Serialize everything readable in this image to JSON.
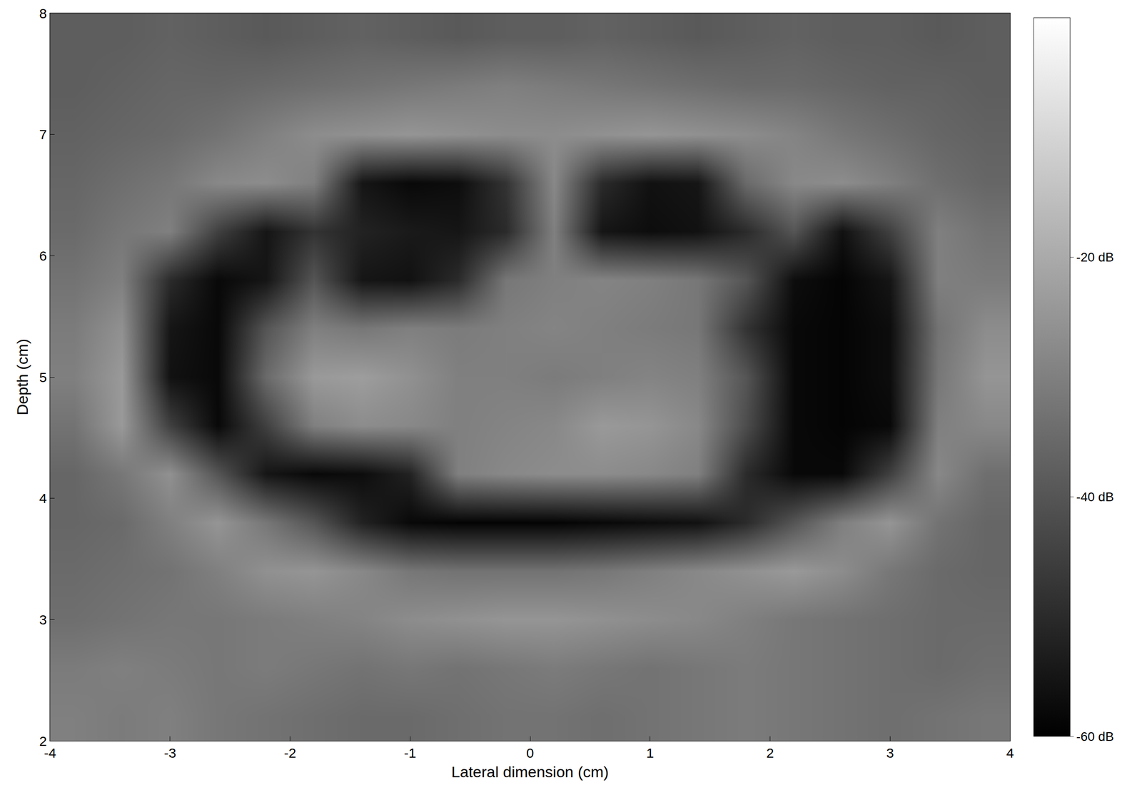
{
  "chart_data": {
    "type": "heatmap",
    "x_label": "Lateral dimension (cm)",
    "y_label": "Depth (cm)",
    "x": [
      -3.8,
      -3.4,
      -3.0,
      -2.6,
      -2.2,
      -1.8,
      -1.4,
      -1.0,
      -0.6,
      -0.2,
      0.2,
      0.6,
      1.0,
      1.4,
      1.8,
      2.2,
      2.6,
      3.0,
      3.4,
      3.8
    ],
    "y": [
      2.2,
      2.6,
      3.0,
      3.4,
      3.8,
      4.2,
      4.6,
      5.0,
      5.4,
      5.8,
      6.2,
      6.6,
      7.0,
      7.4,
      7.8
    ],
    "z": [
      [
        -30,
        -31,
        -30,
        -32,
        -33,
        -34,
        -35,
        -35,
        -34,
        -33,
        -33,
        -34,
        -33,
        -32,
        -31,
        -32,
        -33,
        -34,
        -33,
        -32
      ],
      [
        -31,
        -30,
        -31,
        -32,
        -31,
        -32,
        -33,
        -32,
        -33,
        -32,
        -31,
        -32,
        -33,
        -32,
        -31,
        -32,
        -33,
        -34,
        -35,
        -34
      ],
      [
        -34,
        -33,
        -32,
        -32,
        -31,
        -30,
        -29,
        -27,
        -26,
        -25,
        -25,
        -26,
        -27,
        -28,
        -30,
        -32,
        -33,
        -34,
        -35,
        -35
      ],
      [
        -35,
        -34,
        -33,
        -30,
        -26,
        -25,
        -28,
        -32,
        -33,
        -33,
        -33,
        -32,
        -30,
        -28,
        -26,
        -24,
        -27,
        -32,
        -35,
        -36
      ],
      [
        -36,
        -35,
        -30,
        -25,
        -32,
        -40,
        -52,
        -58,
        -59,
        -59,
        -59,
        -58,
        -57,
        -56,
        -50,
        -40,
        -30,
        -25,
        -33,
        -36
      ],
      [
        -36,
        -32,
        -26,
        -40,
        -55,
        -58,
        -57,
        -52,
        -30,
        -28,
        -27,
        -27,
        -28,
        -30,
        -50,
        -58,
        -58,
        -45,
        -28,
        -34
      ],
      [
        -33,
        -24,
        -45,
        -58,
        -45,
        -30,
        -27,
        -28,
        -30,
        -29,
        -28,
        -24,
        -25,
        -28,
        -42,
        -58,
        -59,
        -58,
        -30,
        -28
      ],
      [
        -30,
        -24,
        -56,
        -58,
        -35,
        -24,
        -23,
        -26,
        -30,
        -30,
        -31,
        -30,
        -29,
        -30,
        -40,
        -58,
        -59,
        -57,
        -32,
        -25
      ],
      [
        -31,
        -26,
        -55,
        -58,
        -40,
        -30,
        -32,
        -30,
        -31,
        -30,
        -29,
        -30,
        -31,
        -32,
        -48,
        -58,
        -59,
        -57,
        -33,
        -27
      ],
      [
        -33,
        -30,
        -50,
        -58,
        -55,
        -40,
        -55,
        -56,
        -50,
        -32,
        -30,
        -29,
        -30,
        -32,
        -40,
        -57,
        -59,
        -55,
        -30,
        -31
      ],
      [
        -35,
        -32,
        -30,
        -45,
        -55,
        -48,
        -52,
        -54,
        -55,
        -50,
        -30,
        -55,
        -57,
        -56,
        -50,
        -40,
        -56,
        -45,
        -30,
        -33
      ],
      [
        -36,
        -34,
        -32,
        -28,
        -27,
        -30,
        -55,
        -58,
        -57,
        -48,
        -28,
        -50,
        -56,
        -55,
        -35,
        -28,
        -27,
        -30,
        -34,
        -36
      ],
      [
        -37,
        -36,
        -35,
        -33,
        -30,
        -27,
        -26,
        -25,
        -26,
        -27,
        -27,
        -26,
        -25,
        -26,
        -27,
        -29,
        -32,
        -34,
        -36,
        -37
      ],
      [
        -38,
        -37,
        -36,
        -36,
        -35,
        -34,
        -33,
        -32,
        -31,
        -30,
        -31,
        -32,
        -33,
        -34,
        -35,
        -35,
        -36,
        -37,
        -37,
        -38
      ],
      [
        -38,
        -38,
        -37,
        -38,
        -39,
        -38,
        -37,
        -38,
        -39,
        -38,
        -38,
        -37,
        -38,
        -39,
        -38,
        -37,
        -38,
        -38,
        -39,
        -38
      ]
    ],
    "xlim": [
      -4,
      4
    ],
    "xticks": [
      -4,
      -3,
      -2,
      -1,
      0,
      1,
      2,
      3,
      4
    ],
    "ylim": [
      2,
      8
    ],
    "yticks": [
      2,
      3,
      4,
      5,
      6,
      7,
      8
    ],
    "colorbar_range": [
      -60,
      0
    ],
    "colorbar_ticks": [
      {
        "value": -20,
        "label": "-20 dB"
      },
      {
        "value": -40,
        "label": "-40 dB"
      },
      {
        "value": -60,
        "label": "-60 dB"
      }
    ],
    "grid": false
  }
}
